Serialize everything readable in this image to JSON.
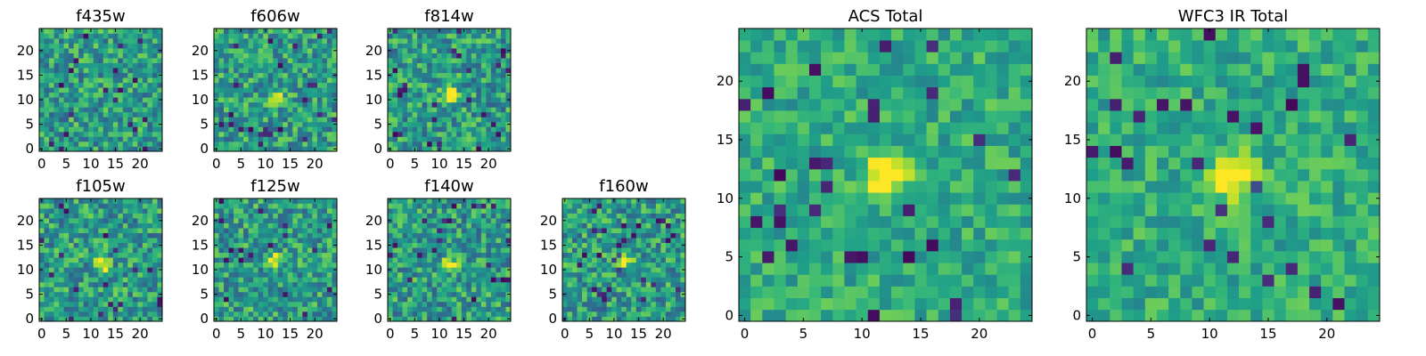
{
  "chart_data": [
    {
      "type": "heatmap",
      "title": "f435w",
      "xlim": [
        -0.5,
        24.5
      ],
      "ylim": [
        -0.5,
        24.5
      ],
      "xticks": [
        0,
        5,
        10,
        15,
        20
      ],
      "yticks": [
        0,
        5,
        10,
        15,
        20
      ],
      "peak": null,
      "colormap": "viridis"
    },
    {
      "type": "heatmap",
      "title": "f606w",
      "xlim": [
        -0.5,
        24.5
      ],
      "ylim": [
        -0.5,
        24.5
      ],
      "xticks": [
        0,
        5,
        10,
        15,
        20
      ],
      "yticks": [
        0,
        5,
        10,
        15,
        20
      ],
      "peak": [
        12,
        11
      ],
      "colormap": "viridis"
    },
    {
      "type": "heatmap",
      "title": "f814w",
      "xlim": [
        -0.5,
        24.5
      ],
      "ylim": [
        -0.5,
        24.5
      ],
      "xticks": [
        0,
        5,
        10,
        15,
        20
      ],
      "yticks": [
        0,
        5,
        10,
        15,
        20
      ],
      "peak": [
        12,
        11
      ],
      "colormap": "viridis"
    },
    {
      "type": "heatmap",
      "title": "f105w",
      "xlim": [
        -0.5,
        24.5
      ],
      "ylim": [
        -0.5,
        24.5
      ],
      "xticks": [
        0,
        5,
        10,
        15,
        20
      ],
      "yticks": [
        0,
        5,
        10,
        15,
        20
      ],
      "peak": [
        12,
        11
      ],
      "colormap": "viridis"
    },
    {
      "type": "heatmap",
      "title": "f125w",
      "xlim": [
        -0.5,
        24.5
      ],
      "ylim": [
        -0.5,
        24.5
      ],
      "xticks": [
        0,
        5,
        10,
        15,
        20
      ],
      "yticks": [
        0,
        5,
        10,
        15,
        20
      ],
      "peak": [
        12,
        12
      ],
      "colormap": "viridis"
    },
    {
      "type": "heatmap",
      "title": "f140w",
      "xlim": [
        -0.5,
        24.5
      ],
      "ylim": [
        -0.5,
        24.5
      ],
      "xticks": [
        0,
        5,
        10,
        15,
        20
      ],
      "yticks": [
        0,
        5,
        10,
        15,
        20
      ],
      "peak": [
        12,
        11
      ],
      "colormap": "viridis"
    },
    {
      "type": "heatmap",
      "title": "f160w",
      "xlim": [
        -0.5,
        24.5
      ],
      "ylim": [
        -0.5,
        24.5
      ],
      "xticks": [
        0,
        5,
        10,
        15,
        20
      ],
      "yticks": [
        0,
        5,
        10,
        15,
        20
      ],
      "peak": [
        12,
        12
      ],
      "colormap": "viridis"
    },
    {
      "type": "heatmap",
      "title": "ACS Total",
      "xlim": [
        -0.5,
        24.5
      ],
      "ylim": [
        -0.5,
        24.5
      ],
      "xticks": [
        0,
        5,
        10,
        15,
        20
      ],
      "yticks": [
        0,
        5,
        10,
        15,
        20
      ],
      "peak": [
        12,
        12
      ],
      "colormap": "viridis"
    },
    {
      "type": "heatmap",
      "title": "WFC3 IR Total",
      "xlim": [
        -0.5,
        24.5
      ],
      "ylim": [
        -0.5,
        24.5
      ],
      "xticks": [
        0,
        5,
        10,
        15,
        20
      ],
      "yticks": [
        0,
        5,
        10,
        15,
        20
      ],
      "peak": [
        12,
        12
      ],
      "colormap": "viridis"
    }
  ]
}
